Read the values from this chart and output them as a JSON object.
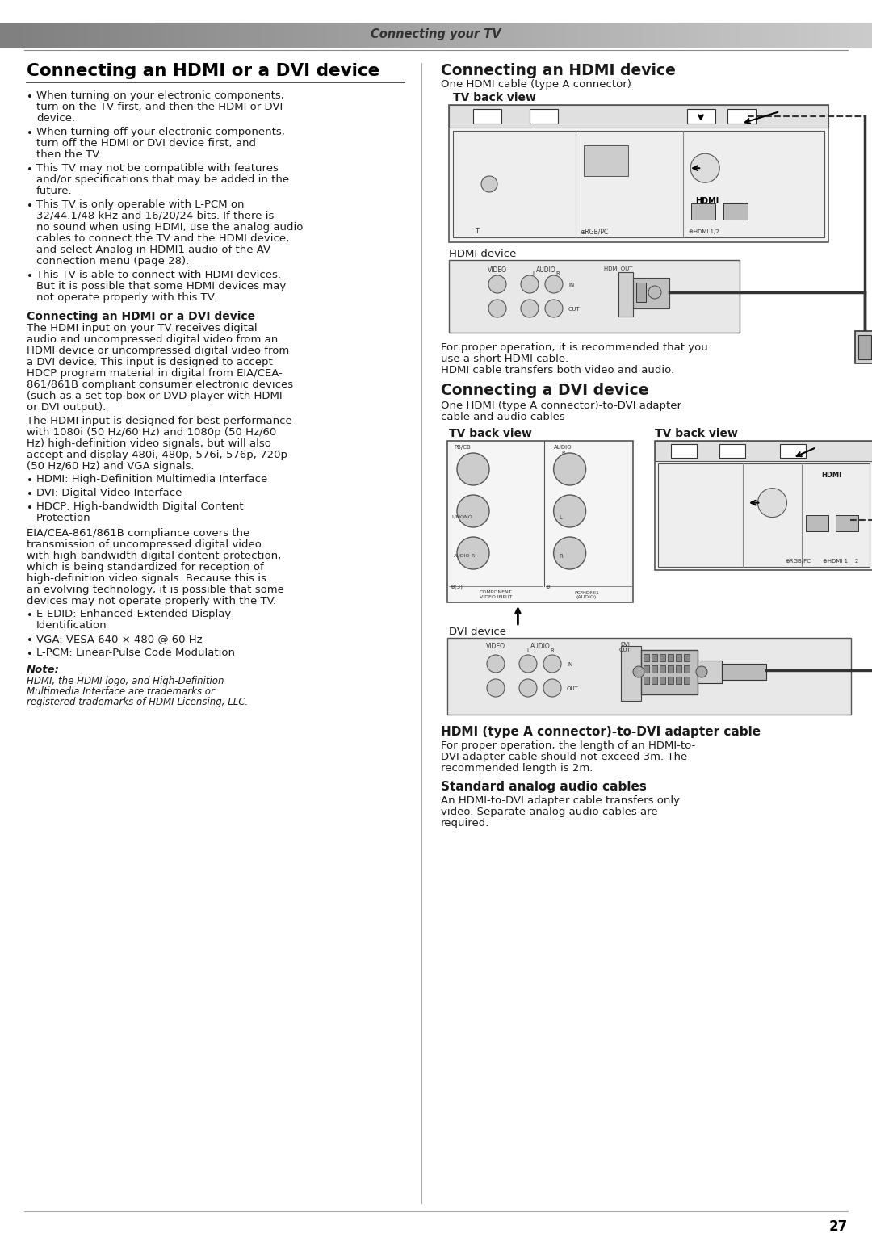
{
  "header_text": "Connecting your TV",
  "page_number": "27",
  "bg_color": "#ffffff",
  "left_title": "Connecting an HDMI or a DVI device",
  "right_col1_title": "Connecting an HDMI device",
  "right_col2_title": "Connecting a DVI device",
  "left_bullets": [
    "When turning on your electronic components, turn on the TV first, and then the HDMI or DVI device.",
    "When turning off your electronic components, turn off the HDMI or DVI device first, and then the TV.",
    "This TV may not be compatible with features and/or specifications that may be added in the future.",
    "This TV is only operable with L-PCM on 32/44.1/48 kHz and 16/20/24 bits. If there is no sound when using HDMI, use the analog audio cables to connect the TV and the HDMI device, and select Analog in HDMI1 audio of the AV connection menu (page 28).",
    "This TV is able to connect with HDMI devices. But it is possible that some HDMI devices may not operate properly with this TV."
  ],
  "sub_heading1": "Connecting an HDMI or a DVI device",
  "sub_para1_lines": [
    "The HDMI input on your TV receives digital",
    "audio and uncompressed digital video from an",
    "HDMI device or uncompressed digital video from",
    "a DVI device. This input is designed to accept",
    "HDCP program material in digital from EIA/CEA-",
    "861/861B compliant consumer electronic devices",
    "(such as a set top box or DVD player with HDMI",
    "or DVI output)."
  ],
  "sub_para2_lines": [
    "The HDMI input is designed for best performance",
    "with 1080i (50 Hz/60 Hz) and 1080p (50 Hz/60",
    "Hz) high-definition video signals, but will also",
    "accept and display 480i, 480p, 576i, 576p, 720p",
    "(50 Hz/60 Hz) and VGA signals."
  ],
  "sub_bullets2": [
    "HDMI: High-Definition Multimedia Interface",
    "DVI: Digital Video Interface",
    "HDCP: High-bandwidth Digital Content\nProtection"
  ],
  "sub_para3_lines": [
    "EIA/CEA-861/861B compliance covers the",
    "transmission of uncompressed digital video",
    "with high-bandwidth digital content protection,",
    "which is being standardized for reception of",
    "high-definition video signals. Because this is",
    "an evolving technology, it is possible that some",
    "devices may not operate properly with the TV."
  ],
  "sub_bullets3": [
    "E-EDID: Enhanced-Extended Display\nIdentification",
    "VGA: VESA 640 × 480 @ 60 Hz",
    "L-PCM: Linear-Pulse Code Modulation"
  ],
  "note_label": "Note:",
  "note_lines": [
    "HDMI, the HDMI logo, and High-Definition",
    "Multimedia Interface are trademarks or",
    "registered trademarks of HDMI Licensing, LLC."
  ],
  "right_hdmi_subtitle": "One HDMI cable (type A connector)",
  "tv_back_label1": "TV back view",
  "hdmi_device_label": "HDMI device",
  "hdmi_para_lines": [
    "For proper operation, it is recommended that you",
    "use a short HDMI cable.",
    "HDMI cable transfers both video and audio."
  ],
  "dvi_subtitle_lines": [
    "One HDMI (type A connector)-to-DVI adapter",
    "cable and audio cables"
  ],
  "tv_back_label2": "TV back view",
  "tv_back_label3": "TV back view",
  "dvi_device_label": "DVI device",
  "hdmi_dvi_heading": "HDMI (type A connector)-to-DVI adapter cable",
  "hdmi_dvi_para_lines": [
    "For proper operation, the length of an HDMI-to-",
    "DVI adapter cable should not exceed 3m. The",
    "recommended length is 2m."
  ],
  "std_audio_heading": "Standard analog audio cables",
  "std_audio_para_lines": [
    "An HDMI-to-DVI adapter cable transfers only",
    "video. Separate analog audio cables are",
    "required."
  ],
  "text_color": "#1a1a1a",
  "body_fs": 9.5,
  "small_fs": 8.5
}
